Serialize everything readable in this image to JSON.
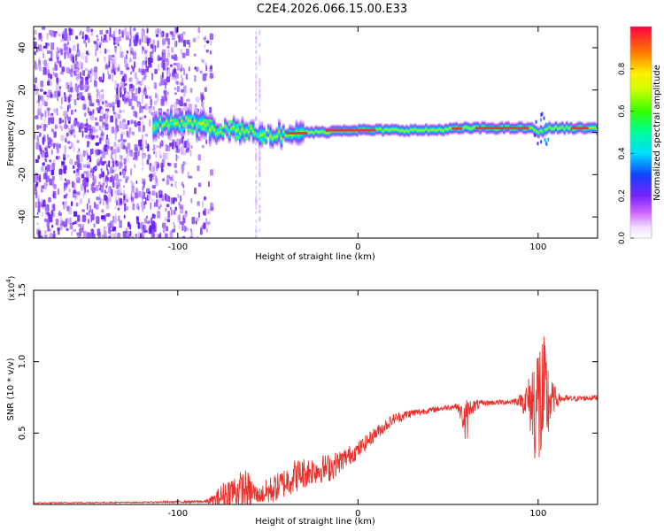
{
  "title": "C2E4.2026.066.15.00.E33",
  "colors": {
    "snr_line": "#e8312c",
    "energy_core": "#e0303a",
    "noise_scatter": "#7a2cff"
  },
  "chart_data": [
    {
      "type": "heatmap",
      "xlabel": "Height of straight line (km)",
      "ylabel": "Frequency (Hz)",
      "xlim": [
        -180,
        133
      ],
      "ylim": [
        -50,
        50
      ],
      "xticks": [
        -100,
        0,
        100
      ],
      "yticks": [
        -40,
        -20,
        0,
        20,
        40
      ],
      "noise_region_x": [
        -180,
        -82
      ],
      "band_center_hz": [
        [
          -112,
          4
        ],
        [
          -95,
          5
        ],
        [
          -85,
          3
        ],
        [
          -80,
          1
        ],
        [
          -70,
          1
        ],
        [
          -60,
          0
        ],
        [
          -50,
          -1
        ],
        [
          -40,
          -1
        ],
        [
          -30,
          0
        ],
        [
          -20,
          0
        ],
        [
          -10,
          1
        ],
        [
          0,
          1
        ],
        [
          20,
          1
        ],
        [
          40,
          1
        ],
        [
          60,
          2
        ],
        [
          80,
          2
        ],
        [
          95,
          2
        ],
        [
          100,
          0
        ],
        [
          105,
          2
        ],
        [
          120,
          2
        ],
        [
          133,
          2
        ]
      ],
      "colorbar": {
        "label": "Normalized spectral amplitude",
        "range": [
          0.0,
          1.0
        ],
        "ticks": [
          0.0,
          0.2,
          0.4,
          0.6,
          0.8
        ],
        "tick_labels": [
          "0.0",
          "0.2",
          "0.4",
          "0.6",
          "0.8"
        ]
      }
    },
    {
      "type": "line",
      "series_name": "SNR",
      "xlabel": "Height of straight line (km)",
      "ylabel": "SNR (10 * v/v)",
      "scale_label": "(x10",
      "scale_exponent": "4",
      "xlim": [
        -180,
        133
      ],
      "ylim": [
        0,
        1.5
      ],
      "xticks": [
        -100,
        0,
        100
      ],
      "yticks": [
        0.5,
        1.0,
        1.5
      ],
      "ytick_labels": [
        "0.5",
        "1.0",
        "1.5"
      ],
      "envelope": {
        "x": [
          -180,
          -120,
          -85,
          -80,
          -75,
          -70,
          -62,
          -55,
          -50,
          -45,
          -35,
          -25,
          -15,
          -10,
          0,
          10,
          20,
          30,
          40,
          55,
          58,
          60,
          62,
          70,
          85,
          90,
          95,
          100,
          103,
          105,
          108,
          112,
          120,
          133
        ],
        "base": [
          0.01,
          0.015,
          0.02,
          0.03,
          0.06,
          0.09,
          0.1,
          0.06,
          0.09,
          0.12,
          0.2,
          0.24,
          0.26,
          0.3,
          0.38,
          0.5,
          0.6,
          0.64,
          0.66,
          0.69,
          0.62,
          0.55,
          0.68,
          0.71,
          0.72,
          0.73,
          0.72,
          0.7,
          0.7,
          0.72,
          0.74,
          0.74,
          0.74,
          0.75
        ],
        "amplitude": [
          0.004,
          0.004,
          0.01,
          0.04,
          0.1,
          0.12,
          0.15,
          0.05,
          0.1,
          0.1,
          0.12,
          0.1,
          0.1,
          0.08,
          0.06,
          0.05,
          0.04,
          0.03,
          0.02,
          0.02,
          0.08,
          0.2,
          0.06,
          0.02,
          0.02,
          0.04,
          0.18,
          0.55,
          0.5,
          0.35,
          0.12,
          0.03,
          0.02,
          0.02
        ]
      }
    }
  ]
}
